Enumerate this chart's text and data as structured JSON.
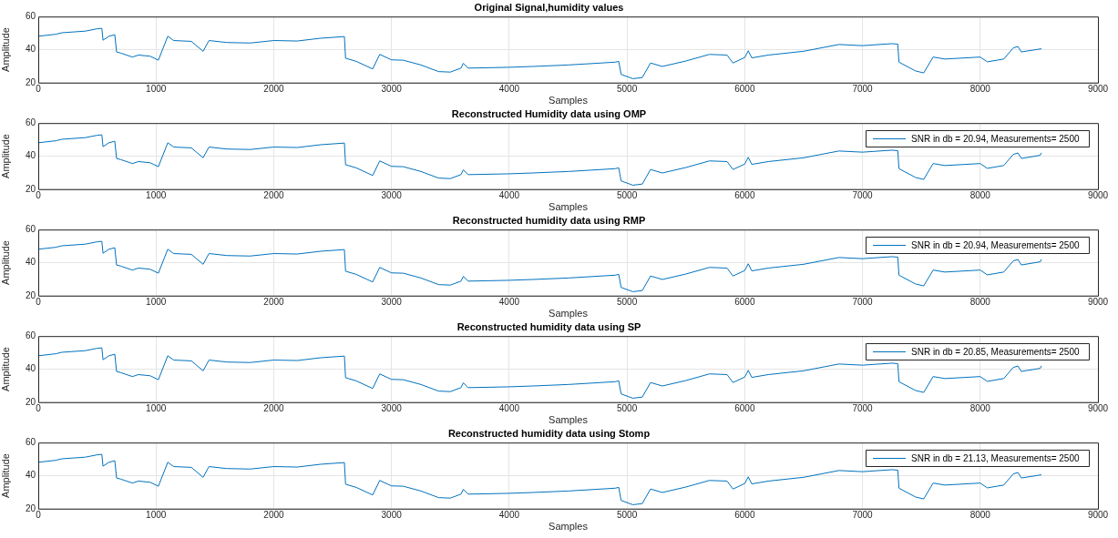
{
  "chart_data": [
    {
      "type": "line",
      "title": "Original Signal,humidity values",
      "xlabel": "Samples",
      "ylabel": "Amplitude",
      "color": "#0072bd",
      "marker": "none",
      "grid": true,
      "xlim": [
        0,
        9000
      ],
      "xticks": [
        0,
        1000,
        2000,
        3000,
        4000,
        5000,
        6000,
        7000,
        8000,
        9000
      ],
      "ylim": [
        20,
        60
      ],
      "yticks": [
        20,
        40,
        60
      ],
      "x": [
        0,
        150,
        200,
        400,
        500,
        540,
        550,
        600,
        650,
        665,
        700,
        800,
        850,
        950,
        1020,
        1100,
        1150,
        1300,
        1400,
        1450,
        1600,
        1800,
        2000,
        2200,
        2400,
        2600,
        2610,
        2700,
        2840,
        2900,
        3000,
        3100,
        3250,
        3400,
        3500,
        3590,
        3610,
        3650,
        3800,
        4000,
        4200,
        4500,
        4900,
        4930,
        4950,
        5050,
        5130,
        5200,
        5300,
        5500,
        5700,
        5850,
        5900,
        6000,
        6030,
        6060,
        6200,
        6500,
        6800,
        7000,
        7250,
        7300,
        7310,
        7450,
        7520,
        7600,
        7700,
        8000,
        8060,
        8200,
        8280,
        8320,
        8350,
        8520
      ],
      "values": [
        48.1,
        49.3,
        50.2,
        51.2,
        52.6,
        52.9,
        45.7,
        48.1,
        49,
        38.6,
        37.9,
        35.5,
        36.7,
        36,
        33.6,
        48.1,
        45.5,
        45,
        39,
        45.5,
        44.3,
        44,
        45.5,
        45.2,
        46.9,
        47.9,
        34.8,
        32.9,
        28.3,
        37.1,
        33.8,
        33.6,
        30.7,
        26.7,
        26.4,
        28.8,
        31.7,
        28.8,
        29,
        29.3,
        29.8,
        30.7,
        32.4,
        32.9,
        25,
        22.4,
        23.1,
        31.9,
        29.8,
        33.1,
        37.1,
        36.7,
        31.9,
        35.2,
        39.3,
        35,
        36.7,
        39,
        43.1,
        42.4,
        43.6,
        43.3,
        32.4,
        27.1,
        25.9,
        35.5,
        34.3,
        35.5,
        32.6,
        34.3,
        41,
        41.9,
        38.6,
        40.5
      ]
    },
    {
      "type": "line",
      "title": "Reconstructed Humidity data using OMP",
      "xlabel": "Samples",
      "ylabel": "Amplitude",
      "marker": "none",
      "grid": true,
      "legend": "top right",
      "xlim": [
        0,
        9000
      ],
      "xticks": [
        0,
        1000,
        2000,
        3000,
        4000,
        5000,
        6000,
        7000,
        8000,
        9000
      ],
      "ylim": [
        20,
        60
      ],
      "yticks": [
        20,
        40,
        60
      ],
      "x": [
        0,
        150,
        200,
        400,
        500,
        540,
        550,
        600,
        650,
        665,
        700,
        800,
        850,
        950,
        1020,
        1100,
        1150,
        1300,
        1400,
        1450,
        1600,
        1800,
        2000,
        2200,
        2400,
        2600,
        2610,
        2700,
        2840,
        2900,
        3000,
        3100,
        3250,
        3400,
        3500,
        3590,
        3610,
        3650,
        3800,
        4000,
        4200,
        4500,
        4900,
        4930,
        4950,
        5050,
        5130,
        5200,
        5300,
        5500,
        5700,
        5850,
        5900,
        6000,
        6030,
        6060,
        6200,
        6500,
        6800,
        7000,
        7250,
        7300,
        7310,
        7450,
        7520,
        7600,
        7700,
        8000,
        8060,
        8200,
        8280,
        8320,
        8350,
        8510,
        8520
      ],
      "series": [
        {
          "name": "SNR in db = 20.94, Measurements= 2500",
          "color": "#0072bd",
          "values": [
            48.1,
            49.3,
            50.2,
            51.2,
            52.6,
            52.9,
            45.7,
            48.1,
            49,
            38.6,
            37.9,
            35.5,
            36.7,
            36,
            33.6,
            48.1,
            45.5,
            45,
            39,
            45.5,
            44.3,
            44,
            45.5,
            45.2,
            46.9,
            47.9,
            34.8,
            32.9,
            28.3,
            37.1,
            33.8,
            33.6,
            30.7,
            26.7,
            26.4,
            28.8,
            31.7,
            28.8,
            29,
            29.3,
            29.8,
            30.7,
            32.4,
            32.9,
            25,
            22.4,
            23.1,
            31.9,
            29.8,
            33.1,
            37.1,
            36.7,
            31.9,
            35.2,
            39.3,
            35,
            36.7,
            39,
            43.1,
            42.4,
            43.6,
            43.3,
            32.4,
            27.1,
            25.9,
            35.5,
            34.3,
            35.5,
            32.6,
            34.3,
            41,
            41.9,
            38.6,
            40.5,
            42
          ]
        }
      ]
    },
    {
      "type": "line",
      "title": "Reconstructed humidity data using RMP",
      "xlabel": "Samples",
      "ylabel": "Amplitude",
      "marker": "none",
      "grid": true,
      "legend": "top right",
      "xlim": [
        0,
        9000
      ],
      "xticks": [
        0,
        1000,
        2000,
        3000,
        4000,
        5000,
        6000,
        7000,
        8000,
        9000
      ],
      "ylim": [
        20,
        60
      ],
      "yticks": [
        20,
        40,
        60
      ],
      "x": [
        0,
        150,
        200,
        400,
        500,
        540,
        550,
        600,
        650,
        665,
        700,
        800,
        850,
        950,
        1020,
        1100,
        1150,
        1300,
        1400,
        1450,
        1600,
        1800,
        2000,
        2200,
        2400,
        2600,
        2610,
        2700,
        2840,
        2900,
        3000,
        3100,
        3250,
        3400,
        3500,
        3590,
        3610,
        3650,
        3800,
        4000,
        4200,
        4500,
        4900,
        4930,
        4950,
        5050,
        5130,
        5200,
        5300,
        5500,
        5700,
        5850,
        5900,
        6000,
        6030,
        6060,
        6200,
        6500,
        6800,
        7000,
        7250,
        7300,
        7310,
        7450,
        7520,
        7600,
        7700,
        8000,
        8060,
        8200,
        8280,
        8320,
        8350,
        8510,
        8520
      ],
      "series": [
        {
          "name": "SNR in db = 20.94, Measurements= 2500",
          "color": "#0072bd",
          "values": [
            48.1,
            49.3,
            50.2,
            51.2,
            52.6,
            52.9,
            45.7,
            48.1,
            49,
            38.6,
            37.9,
            35.5,
            36.7,
            36,
            33.6,
            48.1,
            45.5,
            45,
            39,
            45.5,
            44.3,
            44,
            45.5,
            45.2,
            46.9,
            47.9,
            34.8,
            32.9,
            28.3,
            37.1,
            33.8,
            33.6,
            30.7,
            26.7,
            26.4,
            28.8,
            31.7,
            28.8,
            29,
            29.3,
            29.8,
            30.7,
            32.4,
            32.9,
            25,
            22.4,
            23.1,
            31.9,
            29.8,
            33.1,
            37.1,
            36.7,
            31.9,
            35.2,
            39.3,
            35,
            36.7,
            39,
            43.1,
            42.4,
            43.6,
            43.3,
            32.4,
            27.1,
            25.9,
            35.5,
            34.3,
            35.5,
            32.6,
            34.3,
            41,
            41.9,
            38.6,
            40.5,
            42
          ]
        }
      ]
    },
    {
      "type": "line",
      "title": "Reconstructed humidity data using SP",
      "xlabel": "Samples",
      "ylabel": "Amplitude",
      "marker": "none",
      "grid": true,
      "legend": "top right",
      "xlim": [
        0,
        9000
      ],
      "xticks": [
        0,
        1000,
        2000,
        3000,
        4000,
        5000,
        6000,
        7000,
        8000,
        9000
      ],
      "ylim": [
        20,
        60
      ],
      "yticks": [
        20,
        40,
        60
      ],
      "x": [
        0,
        150,
        200,
        400,
        500,
        540,
        550,
        600,
        650,
        665,
        700,
        800,
        850,
        950,
        1020,
        1100,
        1150,
        1300,
        1400,
        1450,
        1600,
        1800,
        2000,
        2200,
        2400,
        2600,
        2610,
        2700,
        2840,
        2900,
        3000,
        3100,
        3250,
        3400,
        3500,
        3590,
        3610,
        3650,
        3800,
        4000,
        4200,
        4500,
        4900,
        4930,
        4950,
        5050,
        5130,
        5200,
        5300,
        5500,
        5700,
        5850,
        5900,
        6000,
        6030,
        6060,
        6200,
        6500,
        6800,
        7000,
        7250,
        7300,
        7310,
        7450,
        7520,
        7600,
        7700,
        8000,
        8060,
        8200,
        8280,
        8320,
        8350,
        8510,
        8520
      ],
      "series": [
        {
          "name": "SNR in db = 20.85, Measurements= 2500",
          "color": "#0072bd",
          "values": [
            48.1,
            49.3,
            50.2,
            51.2,
            52.6,
            52.9,
            45.7,
            48.1,
            49,
            38.6,
            37.9,
            35.5,
            36.7,
            36,
            33.6,
            48.1,
            45.5,
            45,
            39,
            45.5,
            44.3,
            44,
            45.5,
            45.2,
            46.9,
            47.9,
            34.8,
            32.9,
            28.3,
            37.1,
            33.8,
            33.6,
            30.7,
            26.7,
            26.4,
            28.8,
            31.7,
            28.8,
            29,
            29.3,
            29.8,
            30.7,
            32.4,
            32.9,
            25,
            22.4,
            23.1,
            31.9,
            29.8,
            33.1,
            37.1,
            36.7,
            31.9,
            35.2,
            39.3,
            35,
            36.7,
            39,
            43.1,
            42.4,
            43.6,
            43.3,
            32.4,
            27.1,
            25.9,
            35.5,
            34.3,
            35.5,
            32.6,
            34.3,
            41,
            41.9,
            38.6,
            40.5,
            42
          ]
        }
      ]
    },
    {
      "type": "line",
      "title": "Reconstructed humidity data using Stomp",
      "xlabel": "Samples",
      "ylabel": "Amplitude",
      "marker": "none",
      "grid": true,
      "legend": "top right",
      "xlim": [
        0,
        9000
      ],
      "xticks": [
        0,
        1000,
        2000,
        3000,
        4000,
        5000,
        6000,
        7000,
        8000,
        9000
      ],
      "ylim": [
        20,
        60
      ],
      "yticks": [
        20,
        40,
        60
      ],
      "x": [
        0,
        150,
        200,
        400,
        500,
        540,
        550,
        600,
        650,
        665,
        700,
        800,
        850,
        950,
        1020,
        1100,
        1150,
        1300,
        1400,
        1450,
        1600,
        1800,
        2000,
        2200,
        2400,
        2600,
        2610,
        2700,
        2840,
        2900,
        3000,
        3100,
        3250,
        3400,
        3500,
        3590,
        3610,
        3650,
        3800,
        4000,
        4200,
        4500,
        4900,
        4930,
        4950,
        5050,
        5130,
        5200,
        5300,
        5500,
        5700,
        5850,
        5900,
        6000,
        6030,
        6060,
        6200,
        6500,
        6800,
        7000,
        7250,
        7300,
        7310,
        7450,
        7520,
        7600,
        7700,
        8000,
        8060,
        8200,
        8280,
        8320,
        8350,
        8520
      ],
      "series": [
        {
          "name": "SNR in db = 21.13, Measurements= 2500",
          "color": "#0072bd",
          "values": [
            48.1,
            49.3,
            50.2,
            51.2,
            52.6,
            52.9,
            45.7,
            48.1,
            49,
            38.6,
            37.9,
            35.5,
            36.7,
            36,
            33.6,
            48.1,
            45.5,
            45,
            39,
            45.5,
            44.3,
            44,
            45.5,
            45.2,
            46.9,
            47.9,
            34.8,
            32.9,
            28.3,
            37.1,
            33.8,
            33.6,
            30.7,
            26.7,
            26.4,
            28.8,
            31.7,
            28.8,
            29,
            29.3,
            29.8,
            30.7,
            32.4,
            32.9,
            25,
            22.4,
            23.1,
            31.9,
            29.8,
            33.1,
            37.1,
            36.7,
            31.9,
            35.2,
            39.3,
            35,
            36.7,
            39,
            43.1,
            42.4,
            43.6,
            43.3,
            32.4,
            27.1,
            25.9,
            35.5,
            34.3,
            35.5,
            32.6,
            34.3,
            41,
            41.9,
            38.6,
            40.5
          ]
        }
      ]
    }
  ]
}
